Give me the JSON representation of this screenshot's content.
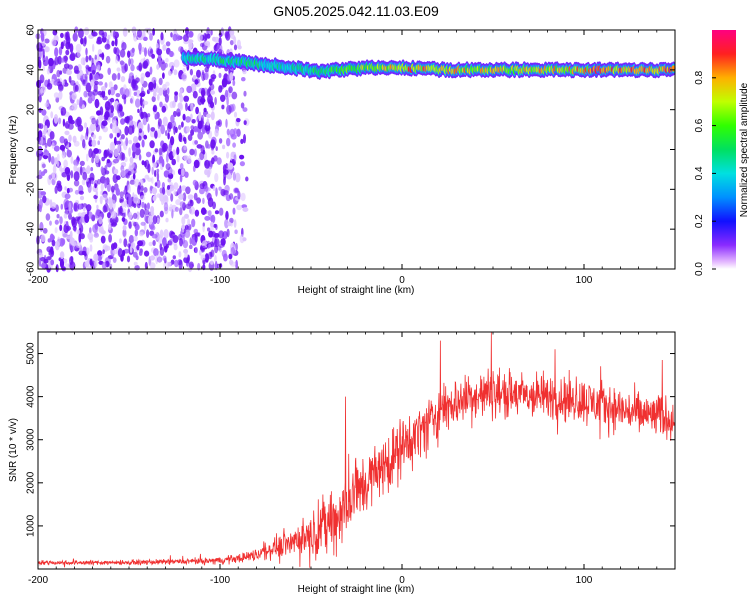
{
  "title": "GN05.2025.042.11.03.E09",
  "colors": {
    "snr_line": "#f03030",
    "spectrogram_noise": "#7a1fff",
    "spectrogram_noise_light": "#d9b8ff"
  },
  "chart_data": [
    {
      "type": "heatmap",
      "title": "GN05.2025.042.11.03.E09",
      "xlabel": "Height of straight line (km)",
      "ylabel": "Frequency (Hz)",
      "xlim": [
        -200,
        150
      ],
      "ylim": [
        -60,
        60
      ],
      "x_ticks": [
        "-200",
        "-100",
        "0",
        "100"
      ],
      "y_ticks": [
        "-60",
        "-40",
        "-20",
        "0",
        "20",
        "40",
        "60"
      ],
      "colorbar": {
        "label": "Normalized spectral amplitude",
        "range": [
          0,
          1
        ],
        "ticks": [
          "0.0",
          "0.2",
          "0.4",
          "0.6",
          "0.8"
        ],
        "colormap": "rainbow"
      },
      "features": {
        "noise_region_x": [
          -200,
          -85
        ],
        "dense_noise_x": [
          -200,
          -100
        ],
        "tone_band_x": [
          -120,
          150
        ],
        "tone_frequency_hz": [
          [
            -120,
            46
          ],
          [
            -100,
            45
          ],
          [
            -80,
            43
          ],
          [
            -60,
            41
          ],
          [
            -45,
            39
          ],
          [
            -35,
            40
          ],
          [
            -20,
            41
          ],
          [
            0,
            41
          ],
          [
            25,
            40
          ],
          [
            50,
            40
          ],
          [
            75,
            40
          ],
          [
            100,
            40
          ],
          [
            125,
            40
          ],
          [
            150,
            40
          ]
        ],
        "tone_amplitude": [
          [
            -120,
            0.45
          ],
          [
            -100,
            0.5
          ],
          [
            -80,
            0.5
          ],
          [
            -60,
            0.45
          ],
          [
            -40,
            0.55
          ],
          [
            -20,
            0.7
          ],
          [
            0,
            0.85
          ],
          [
            20,
            0.8
          ],
          [
            50,
            0.75
          ],
          [
            80,
            0.8
          ],
          [
            110,
            0.85
          ],
          [
            150,
            0.85
          ]
        ]
      }
    },
    {
      "type": "line",
      "xlabel": "Height of straight line (km)",
      "ylabel": "SNR (10 * v/v)",
      "xlim": [
        -200,
        150
      ],
      "ylim": [
        0,
        5500
      ],
      "x_ticks": [
        "-200",
        "-100",
        "0",
        "100"
      ],
      "y_ticks": [
        "1000",
        "2000",
        "3000",
        "4000",
        "5000"
      ],
      "grid": false,
      "envelope": {
        "x": [
          -200,
          -150,
          -110,
          -100,
          -90,
          -80,
          -70,
          -60,
          -50,
          -45,
          -40,
          -35,
          -30,
          -25,
          -20,
          -15,
          -10,
          -5,
          0,
          10,
          20,
          30,
          40,
          50,
          60,
          70,
          80,
          90,
          100,
          110,
          120,
          130,
          140,
          150
        ],
        "mean": [
          150,
          150,
          180,
          200,
          250,
          330,
          500,
          650,
          800,
          950,
          1100,
          1200,
          1500,
          1800,
          2000,
          2200,
          2400,
          2600,
          2800,
          3200,
          3600,
          3900,
          4000,
          4100,
          4050,
          4000,
          4000,
          3950,
          3900,
          3800,
          3700,
          3600,
          3550,
          3500
        ],
        "spread": [
          80,
          80,
          100,
          120,
          150,
          220,
          350,
          500,
          700,
          900,
          1100,
          1200,
          1300,
          1200,
          1100,
          1000,
          1000,
          1000,
          1000,
          900,
          900,
          850,
          850,
          850,
          800,
          800,
          800,
          800,
          800,
          800,
          750,
          750,
          750,
          700
        ]
      },
      "notable_peaks": [
        {
          "x": 49,
          "y": 5500
        },
        {
          "x": 21,
          "y": 5300
        },
        {
          "x": -31,
          "y": 4000
        },
        {
          "x": 84,
          "y": 5100
        },
        {
          "x": 143,
          "y": 4850
        }
      ]
    }
  ]
}
